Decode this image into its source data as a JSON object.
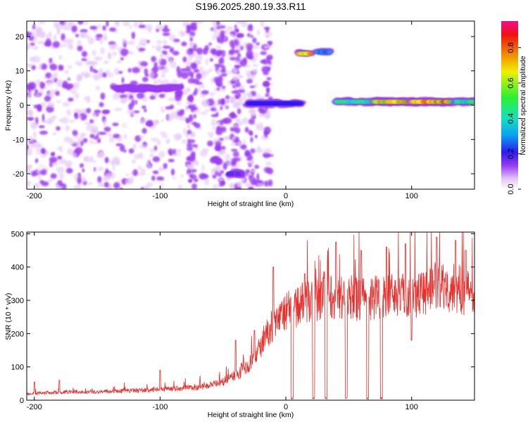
{
  "title": "S196.2025.280.19.33.R11",
  "chart_data": [
    {
      "type": "heatmap",
      "panel": "spectrogram",
      "title": "S196.2025.280.19.33.R11",
      "xlabel": "Height of straight line (km)",
      "ylabel": "Frequency (Hz)",
      "xlim": [
        -206,
        150
      ],
      "ylim": [
        -24.5,
        24.5
      ],
      "xticks": [
        -200,
        -100,
        0,
        100
      ],
      "xtick_labels": [
        "-200",
        "-100",
        "0",
        "100"
      ],
      "yticks": [
        -20,
        -10,
        0,
        10,
        20
      ],
      "ytick_labels": [
        "-20",
        "-10",
        "0",
        "10",
        "20"
      ],
      "colorbar": {
        "label": "Normalized spectral amplitude",
        "range": [
          0.0,
          0.95
        ],
        "ticks": [
          0.0,
          0.2,
          0.4,
          0.6,
          0.8
        ],
        "tick_labels": [
          "0.0",
          "0.2",
          "0.4",
          "0.6",
          "0.8"
        ]
      },
      "features": [
        {
          "x": [
            -135,
            -85
          ],
          "freq": 5,
          "amplitude": 0.2
        },
        {
          "x": [
            -30,
            12
          ],
          "freq": 0.5,
          "amplitude": 0.3
        },
        {
          "x": [
            10,
            20
          ],
          "freq": 15,
          "amplitude": 0.85
        },
        {
          "x": [
            25,
            35
          ],
          "freq": 15.5,
          "amplitude": 0.4
        },
        {
          "x": [
            40,
            150
          ],
          "freq": 1,
          "amplitude": 0.55
        },
        {
          "x": [
            70,
            100
          ],
          "freq": 1,
          "amplitude": 0.85
        },
        {
          "x": [
            100,
            130
          ],
          "freq": 1,
          "amplitude": 0.9
        },
        {
          "x": [
            -45,
            -35
          ],
          "freq": -20,
          "amplitude": 0.25
        }
      ]
    },
    {
      "type": "line",
      "panel": "snr",
      "xlabel": "Height of straight line (km)",
      "ylabel": "SNR (10 * v/v)",
      "xlim": [
        -206,
        150
      ],
      "ylim": [
        0,
        505
      ],
      "xticks": [
        -200,
        -100,
        0,
        100
      ],
      "xtick_labels": [
        "-200",
        "-100",
        "0",
        "100"
      ],
      "yticks": [
        0,
        100,
        200,
        300,
        400,
        500
      ],
      "ytick_labels": [
        "0",
        "100",
        "200",
        "300",
        "400",
        "500"
      ],
      "series": [
        {
          "name": "SNR",
          "color": "#e8302d",
          "x": [
            -206,
            -190,
            -170,
            -150,
            -130,
            -110,
            -90,
            -70,
            -60,
            -50,
            -40,
            -30,
            -20,
            -15,
            -10,
            -5,
            0,
            5,
            10,
            15,
            20,
            25,
            30,
            35,
            40,
            50,
            60,
            70,
            80,
            90,
            100,
            110,
            120,
            130,
            140,
            150
          ],
          "y": [
            20,
            22,
            25,
            25,
            28,
            30,
            35,
            38,
            45,
            55,
            75,
            100,
            160,
            200,
            230,
            240,
            270,
            270,
            280,
            300,
            300,
            300,
            320,
            320,
            310,
            310,
            300,
            310,
            320,
            320,
            310,
            330,
            340,
            340,
            330,
            320
          ],
          "dropouts_x": [
            5,
            22,
            32,
            48,
            65,
            76
          ],
          "spikes": [
            [
              -180,
              60
            ],
            [
              -200,
              55
            ],
            [
              -100,
              90
            ],
            [
              -40,
              180
            ],
            [
              -25,
              210
            ],
            [
              -10,
              400
            ],
            [
              15,
              380
            ],
            [
              40,
              475
            ],
            [
              60,
              450
            ],
            [
              80,
              460
            ],
            [
              95,
              470
            ],
            [
              120,
              490
            ],
            [
              135,
              480
            ],
            [
              143,
              450
            ],
            [
              100,
              180
            ]
          ]
        }
      ]
    }
  ]
}
